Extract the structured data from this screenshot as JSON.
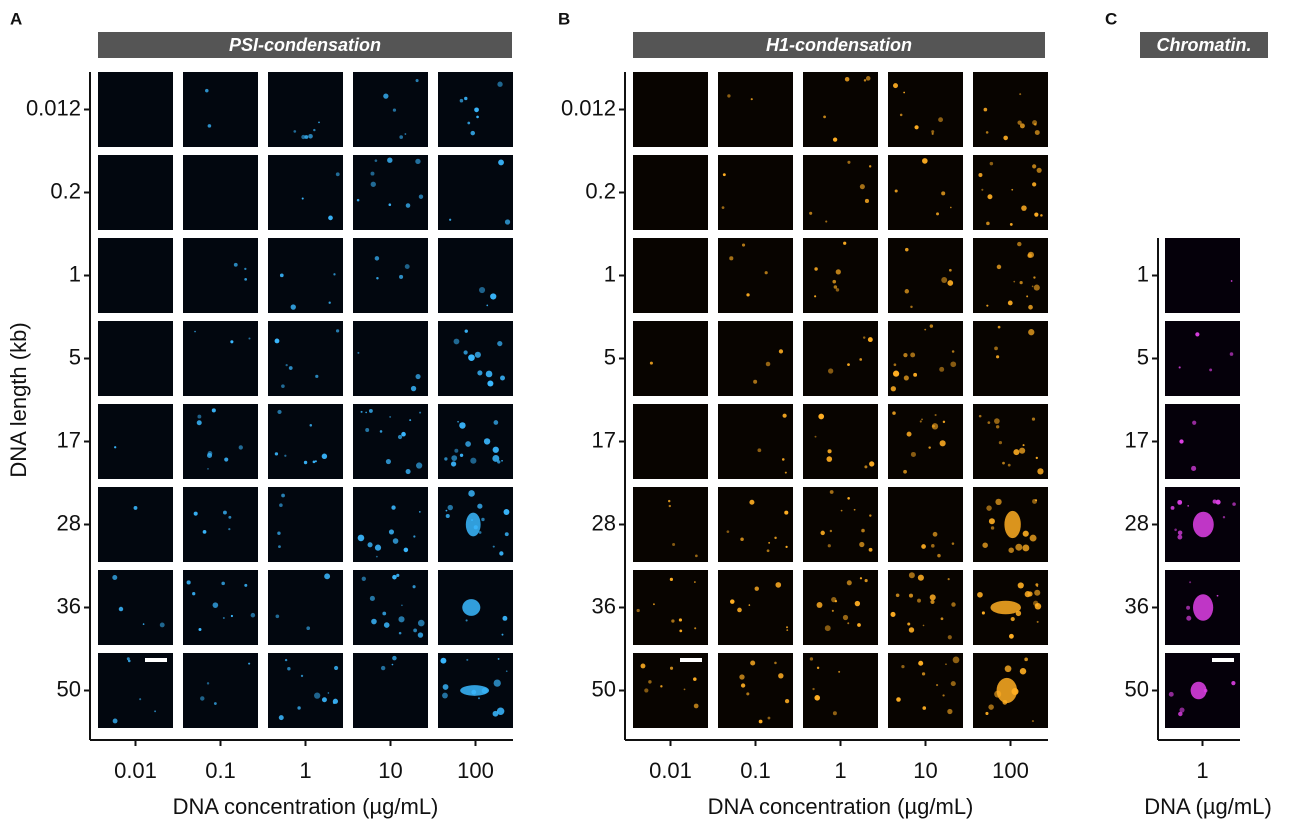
{
  "panels": [
    {
      "label": "A",
      "title": "PSI-condensation",
      "row_labels": [
        "0.012",
        "0.2",
        "1",
        "5",
        "17",
        "28",
        "36",
        "50"
      ],
      "column_labels": [
        "0.01",
        "0.1",
        "1",
        "10",
        "100"
      ],
      "x_axis_title": "DNA concentration (µg/mL)",
      "y_axis_title": "DNA length (kb)"
    },
    {
      "label": "B",
      "title": "H1-condensation",
      "row_labels": [
        "0.012",
        "0.2",
        "1",
        "5",
        "17",
        "28",
        "36",
        "50"
      ],
      "column_labels": [
        "0.01",
        "0.1",
        "1",
        "10",
        "100"
      ],
      "x_axis_title": "DNA concentration (µg/mL)"
    },
    {
      "label": "C",
      "title": "Chromatin.",
      "row_labels": [
        "1",
        "5",
        "17",
        "28",
        "36",
        "50"
      ],
      "column_labels": [
        "1"
      ],
      "x_axis_title": "DNA (µg/mL)"
    }
  ]
}
